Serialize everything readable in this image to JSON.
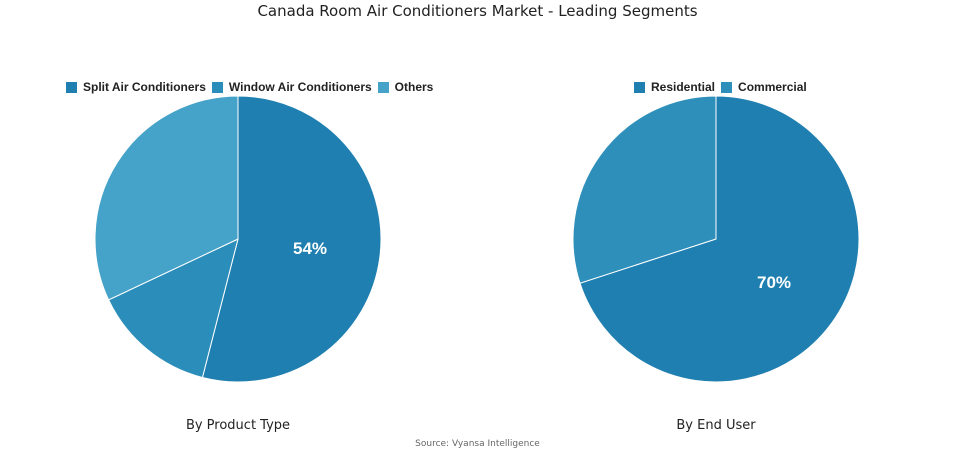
{
  "title": "Canada Room Air Conditioners Market - Leading Segments",
  "source": "Source: Vyansa Intelligence",
  "chart_data": [
    {
      "type": "pie",
      "subtitle": "By Product Type",
      "legend_position": "top",
      "slices": [
        {
          "name": "Split Air Conditioners",
          "value": 54,
          "color": "#1f7fb0",
          "label": "54%"
        },
        {
          "name": "Window Air Conditioners",
          "value": 14,
          "color": "#2b8dba",
          "label": ""
        },
        {
          "name": "Others",
          "value": 32,
          "color": "#45a2c8",
          "label": ""
        }
      ]
    },
    {
      "type": "pie",
      "subtitle": "By End User",
      "legend_position": "top",
      "slices": [
        {
          "name": "Residential",
          "value": 70,
          "color": "#1f7fb0",
          "label": "70%"
        },
        {
          "name": "Commercial",
          "value": 30,
          "color": "#2f8fbb",
          "label": ""
        }
      ]
    }
  ]
}
